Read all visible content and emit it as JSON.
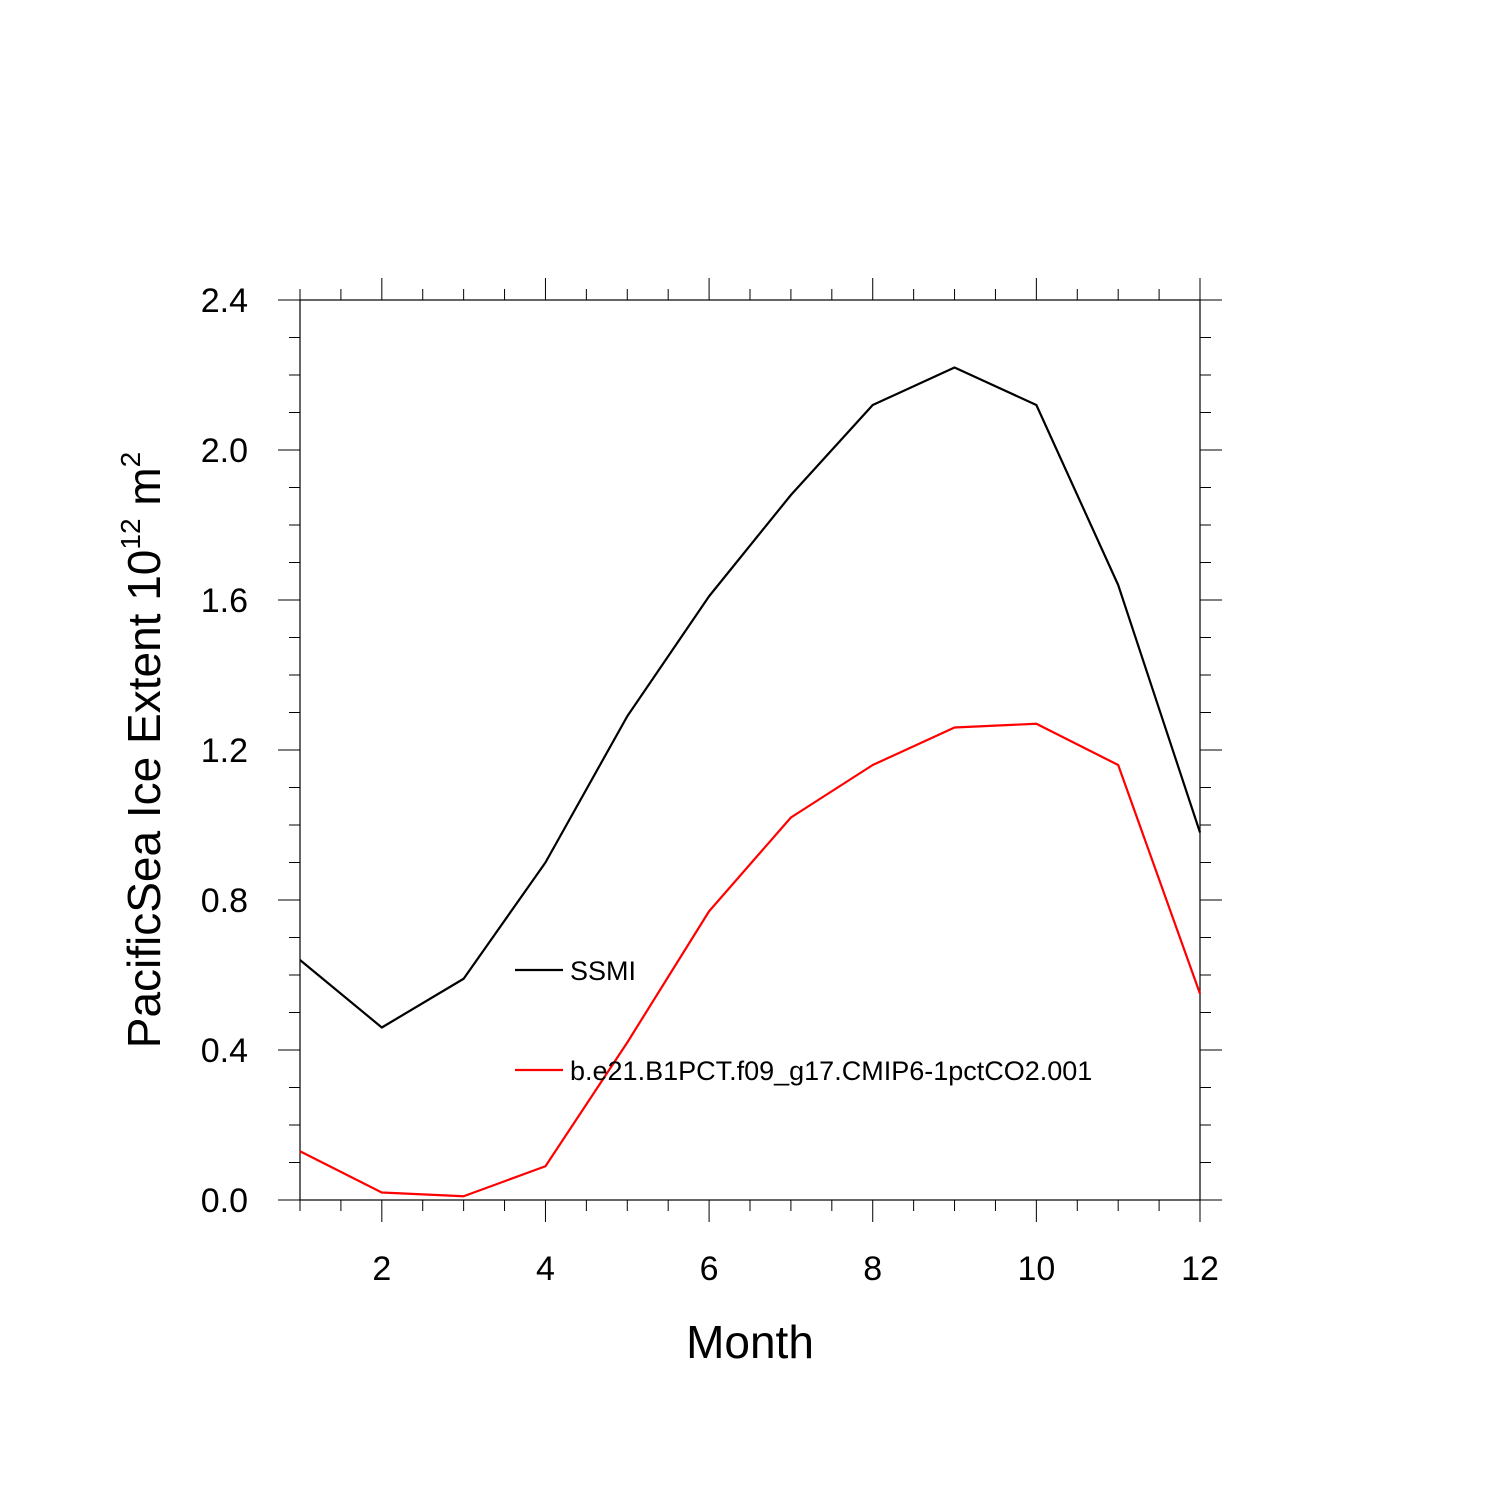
{
  "chart_data": {
    "type": "line",
    "title": "",
    "xlabel": "Month",
    "ylabel_main": "PacificSea Ice Extent 10",
    "ylabel_exp1": "12",
    "ylabel_unit": " m",
    "ylabel_exp2": "2",
    "xlim": [
      1,
      12
    ],
    "ylim": [
      0.0,
      2.4
    ],
    "xticks": [
      2,
      4,
      6,
      8,
      10,
      12
    ],
    "xtick_labels": [
      "2",
      "4",
      "6",
      "8",
      "10",
      "12"
    ],
    "yticks": [
      0.0,
      0.4,
      0.8,
      1.2,
      1.6,
      2.0,
      2.4
    ],
    "ytick_labels": [
      "0.0",
      "0.4",
      "0.8",
      "1.2",
      "1.6",
      "2.0",
      "2.4"
    ],
    "x": [
      1,
      2,
      3,
      4,
      5,
      6,
      7,
      8,
      9,
      10,
      11,
      12
    ],
    "series": [
      {
        "name": "SSMI",
        "color": "#000000",
        "values": [
          0.64,
          0.46,
          0.59,
          0.9,
          1.29,
          1.61,
          1.88,
          2.12,
          2.22,
          2.12,
          1.64,
          0.98
        ]
      },
      {
        "name": "b.e21.B1PCT.f09_g17.CMIP6-1pctCO2.001",
        "color": "#ff0000",
        "values": [
          0.13,
          0.02,
          0.01,
          0.09,
          0.42,
          0.77,
          1.02,
          1.16,
          1.26,
          1.27,
          1.16,
          0.55
        ]
      }
    ],
    "legend_position": "center"
  }
}
